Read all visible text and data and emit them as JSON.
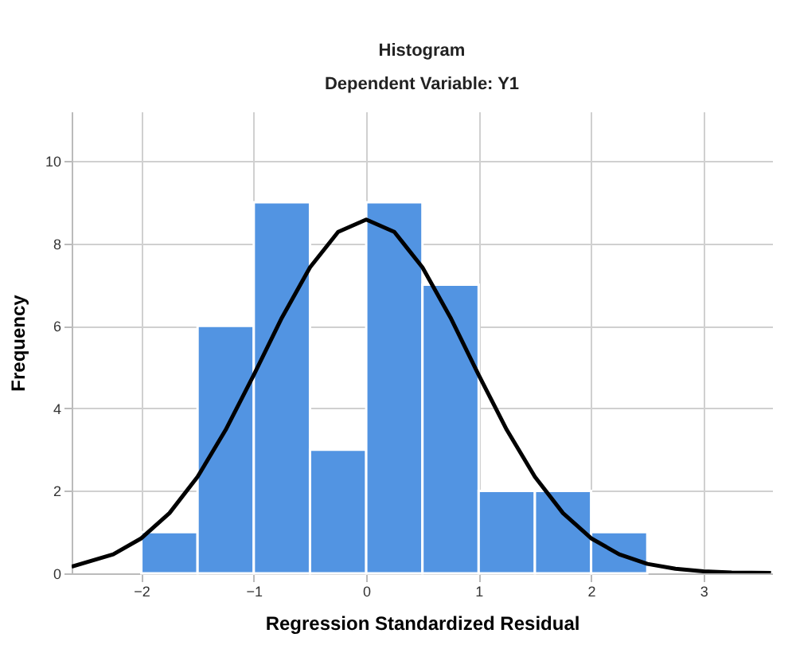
{
  "chart_data": {
    "type": "histogram",
    "title": "Histogram",
    "subtitle": "Dependent Variable: Y1",
    "xlabel": "Regression Standardized Residual",
    "ylabel": "Frequency",
    "bins": [
      -2,
      -1.5,
      -1,
      -0.5,
      0,
      0.5,
      1,
      1.5,
      2,
      2.5
    ],
    "values": [
      1,
      6,
      9,
      3,
      9,
      7,
      2,
      2,
      1
    ],
    "color": "#5294e2",
    "series": [
      {
        "type": "line",
        "color": "#000000",
        "x": [
          -2.62,
          -2.25,
          -2,
          -1.75,
          -1.5,
          -1.25,
          -1,
          -0.75,
          -0.5,
          -0.25,
          0,
          0.25,
          0.5,
          0.75,
          1,
          1.25,
          1.5,
          1.75,
          2,
          2.25,
          2.5,
          2.75,
          3,
          3.25,
          3.6
        ],
        "values": [
          0.16,
          0.46,
          0.85,
          1.46,
          2.34,
          3.48,
          4.81,
          6.2,
          7.42,
          8.28,
          8.58,
          8.28,
          7.42,
          6.2,
          4.81,
          3.48,
          2.34,
          1.46,
          0.85,
          0.46,
          0.23,
          0.11,
          0.05,
          0.02,
          0.01
        ]
      }
    ],
    "xlim": [
      -2.62,
      3.61
    ],
    "ylim": [
      0,
      11.2
    ],
    "xticks": [
      -2,
      -1,
      0,
      1,
      2,
      3
    ],
    "yticks": [
      0,
      2,
      4,
      6,
      8,
      10
    ],
    "grid": true,
    "line_style": "solid"
  }
}
